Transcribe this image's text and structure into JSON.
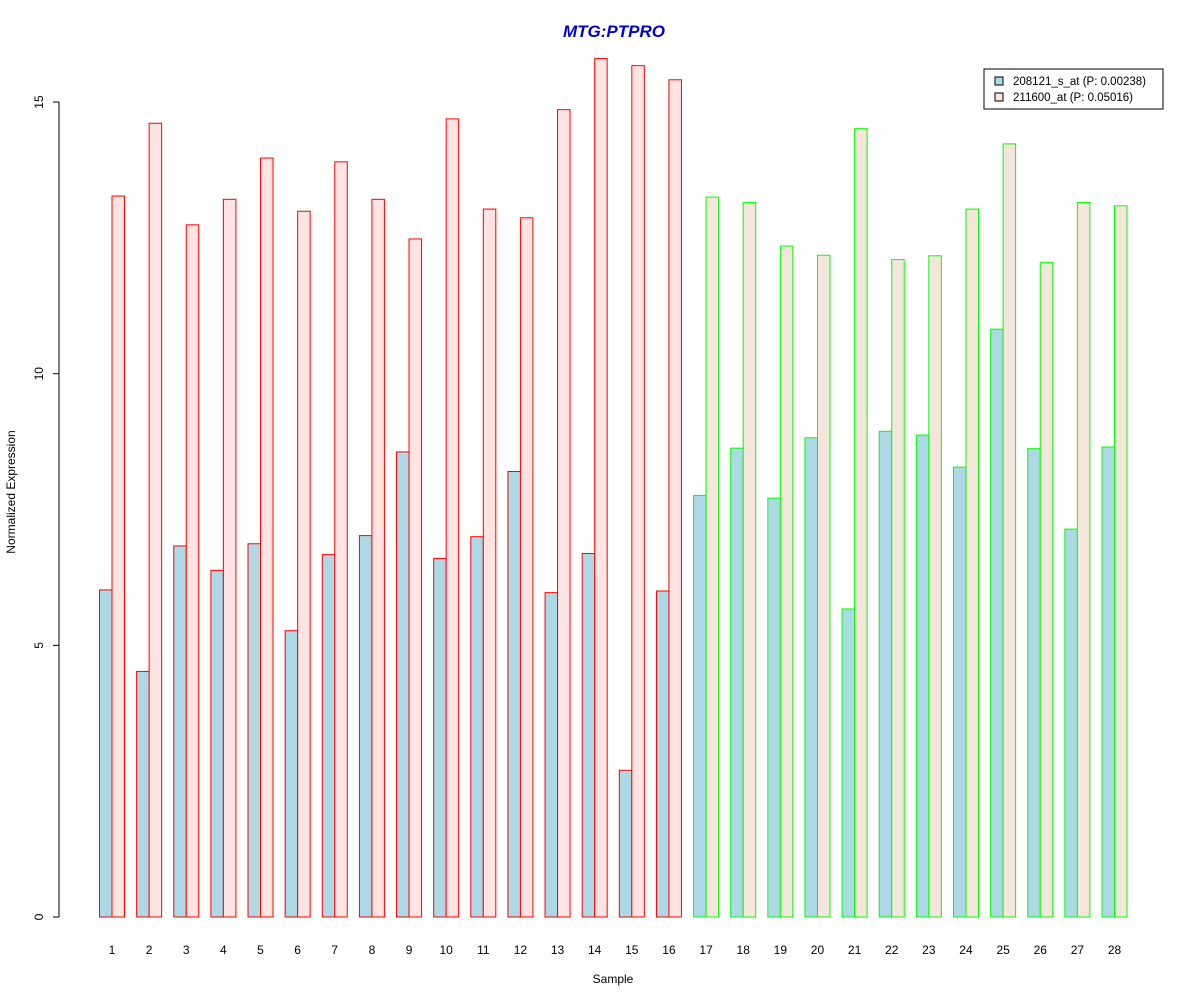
{
  "chart_data": {
    "type": "bar",
    "title": "MTG:PTPRO",
    "xlabel": "Sample",
    "ylabel": "Normalized Expression",
    "categories": [
      "1",
      "2",
      "3",
      "4",
      "5",
      "6",
      "7",
      "8",
      "9",
      "10",
      "11",
      "12",
      "13",
      "14",
      "15",
      "16",
      "17",
      "18",
      "19",
      "20",
      "21",
      "22",
      "23",
      "24",
      "25",
      "26",
      "27",
      "28"
    ],
    "y_ticks": [
      "0",
      "5",
      "10",
      "15"
    ],
    "ylim": [
      0,
      15.8
    ],
    "grid": false,
    "legend_position": "top-right",
    "series": [
      {
        "name": "208121_s_at (P: 0.00238)",
        "fill": "#add8e6",
        "values": [
          6.02,
          4.52,
          6.83,
          6.38,
          6.87,
          5.27,
          6.67,
          7.02,
          8.56,
          6.6,
          7.0,
          8.2,
          5.97,
          6.69,
          2.7,
          6.0,
          7.76,
          8.63,
          7.71,
          8.82,
          5.67,
          8.94,
          8.87,
          8.28,
          10.82,
          8.62,
          7.14,
          8.65
        ]
      },
      {
        "name": "211600_at (P: 0.05016)",
        "fill": "#ffe4e1",
        "values": [
          13.27,
          14.61,
          12.74,
          13.21,
          13.97,
          12.99,
          13.9,
          13.21,
          12.48,
          14.69,
          13.03,
          12.87,
          14.86,
          15.8,
          15.67,
          15.41,
          13.25,
          13.15,
          12.35,
          12.18,
          14.51,
          12.1,
          12.17,
          13.03,
          14.23,
          12.05,
          13.15,
          13.09
        ]
      }
    ],
    "group_colors": {
      "group_1_border": "#ff0000",
      "group_2_border": "#00ff00",
      "group_2_series2_fill": "#f5e6dc"
    },
    "group_1_samples": 16,
    "title_color": "#0000cd"
  }
}
